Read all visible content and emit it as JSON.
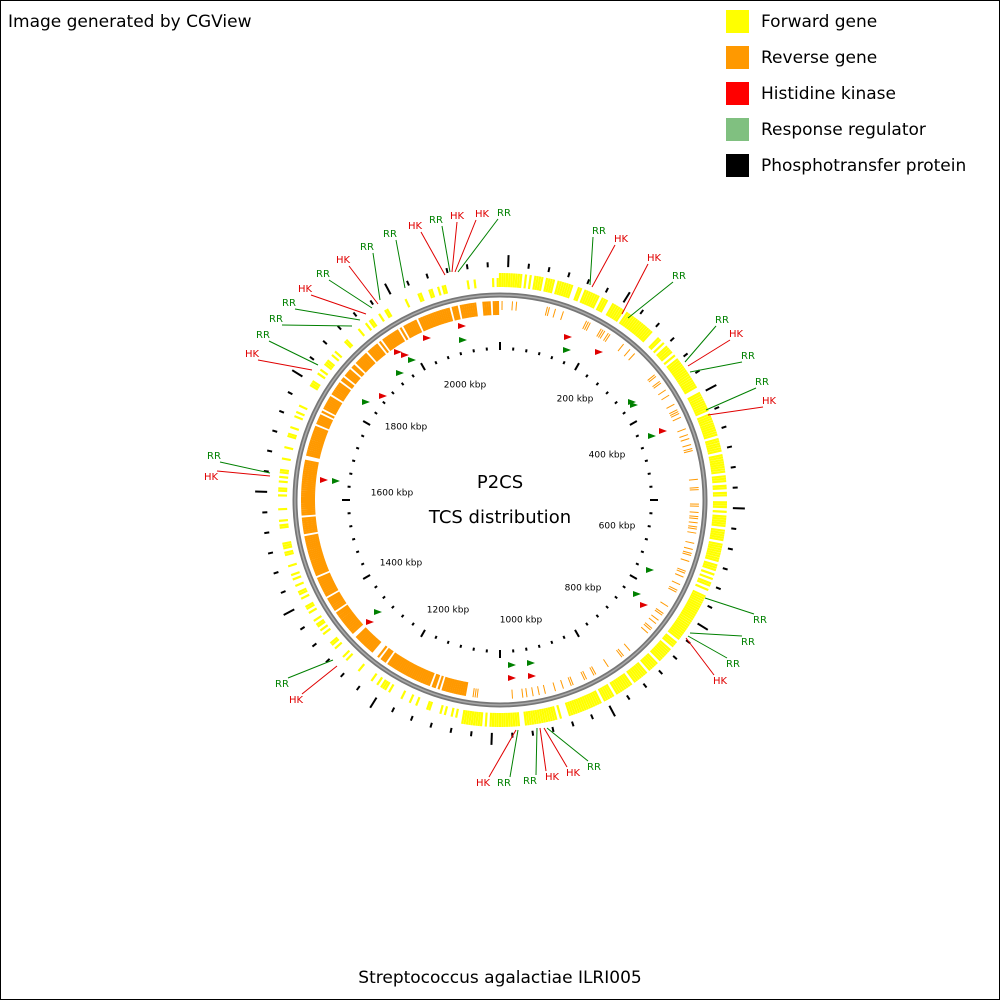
{
  "header": "Image generated by CGView",
  "legend": {
    "items": [
      {
        "label": "Forward gene",
        "color": "#ffff00"
      },
      {
        "label": "Reverse gene",
        "color": "#ff9900"
      },
      {
        "label": "Histidine kinase",
        "color": "#ff0000"
      },
      {
        "label": "Response regulator",
        "color": "#80c080"
      },
      {
        "label": "Phosphotransfer protein",
        "color": "#000000"
      }
    ]
  },
  "center": {
    "title": "P2CS",
    "subtitle": "TCS distribution"
  },
  "scale_labels": [
    "2000 kbp",
    "200 kbp",
    "400 kbp",
    "600 kbp",
    "800 kbp",
    "1000 kbp",
    "1200 kbp",
    "1400 kbp",
    "1600 kbp",
    "1800 kbp"
  ],
  "features": [
    {
      "label": "RR",
      "color": "#008000"
    },
    {
      "label": "HK",
      "color": "#e00000"
    },
    {
      "label": "HK",
      "color": "#e00000"
    },
    {
      "label": "RR",
      "color": "#008000"
    },
    {
      "label": "HK",
      "color": "#e00000"
    },
    {
      "label": "RR",
      "color": "#008000"
    },
    {
      "label": "RR",
      "color": "#008000"
    },
    {
      "label": "HK",
      "color": "#e00000"
    },
    {
      "label": "RR",
      "color": "#008000"
    },
    {
      "label": "HK",
      "color": "#e00000"
    },
    {
      "label": "RR",
      "color": "#008000"
    },
    {
      "label": "RR",
      "color": "#008000"
    },
    {
      "label": "RR",
      "color": "#008000"
    },
    {
      "label": "HK",
      "color": "#e00000"
    },
    {
      "label": "RR",
      "color": "#008000"
    },
    {
      "label": "HK",
      "color": "#e00000"
    },
    {
      "label": "HK",
      "color": "#e00000"
    },
    {
      "label": "RR",
      "color": "#008000"
    },
    {
      "label": "RR",
      "color": "#008000"
    },
    {
      "label": "HK",
      "color": "#e00000"
    },
    {
      "label": "RR",
      "color": "#008000"
    },
    {
      "label": "RR",
      "color": "#008000"
    },
    {
      "label": "HK",
      "color": "#e00000"
    },
    {
      "label": "RR",
      "color": "#008000"
    },
    {
      "label": "HK",
      "color": "#e00000"
    },
    {
      "label": "RR",
      "color": "#008000"
    },
    {
      "label": "RR",
      "color": "#008000"
    },
    {
      "label": "RR",
      "color": "#008000"
    },
    {
      "label": "HK",
      "color": "#e00000"
    },
    {
      "label": "RR",
      "color": "#008000"
    },
    {
      "label": "HK",
      "color": "#e00000"
    },
    {
      "label": "HK",
      "color": "#e00000"
    },
    {
      "label": "RR",
      "color": "#008000"
    },
    {
      "label": "RR",
      "color": "#008000"
    },
    {
      "label": "HK",
      "color": "#e00000"
    },
    {
      "label": "HK",
      "color": "#e00000"
    },
    {
      "label": "RR",
      "color": "#008000"
    }
  ],
  "footer": "Streptococcus agalactiae ILRI005"
}
